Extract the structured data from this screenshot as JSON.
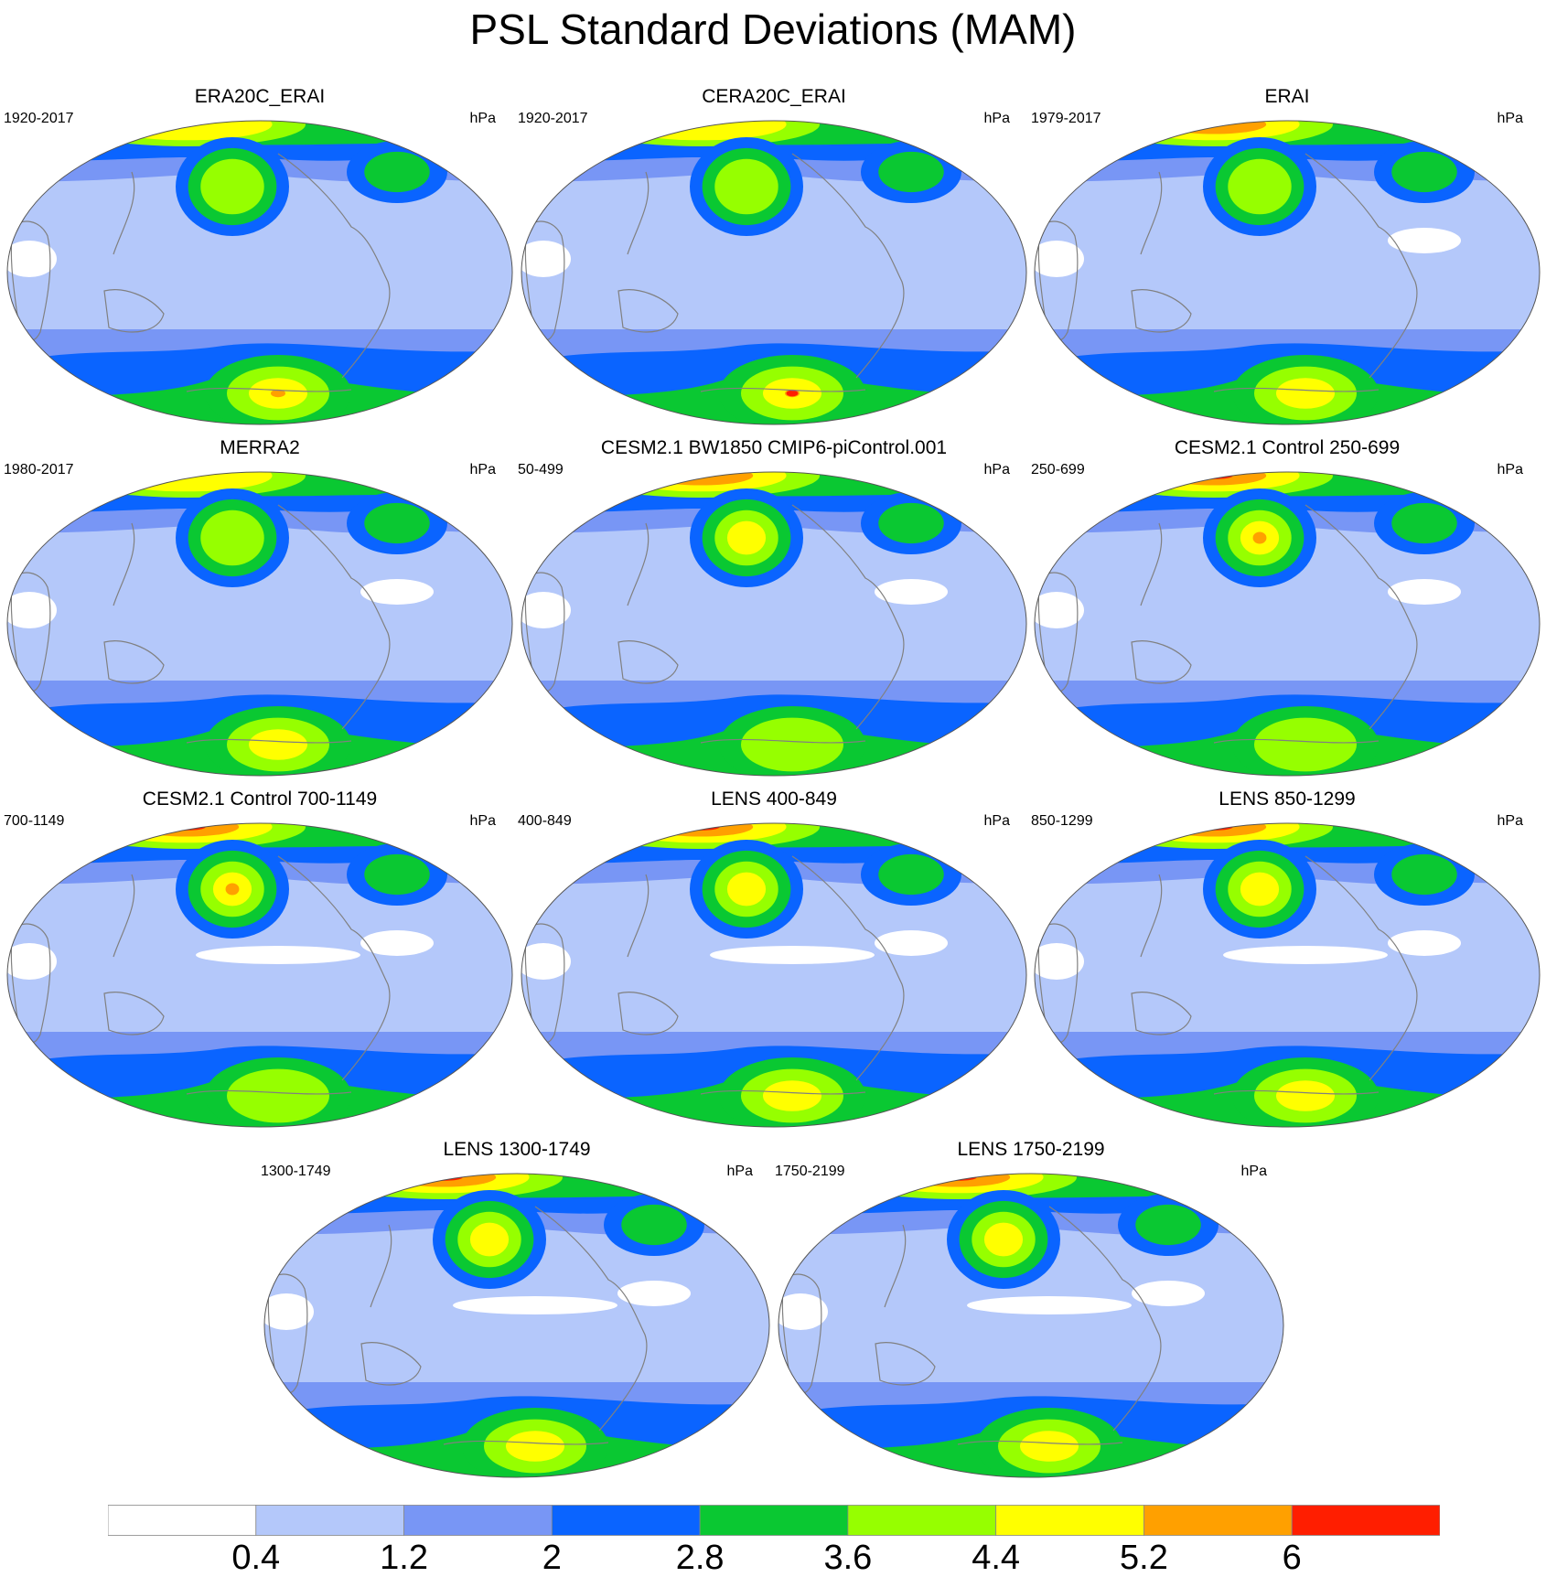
{
  "title": "PSL Standard Deviations (MAM)",
  "colors": {
    "white": "#ffffff",
    "light_blue": "#b4c8fa",
    "medium_blue": "#7896f5",
    "blue": "#0a64ff",
    "green": "#0ac832",
    "lime": "#96ff00",
    "yellow": "#ffff00",
    "orange": "#ffa000",
    "red": "#ff1e00",
    "coastline": "#808080"
  },
  "colorbar": {
    "labels": [
      "0.4",
      "1.2",
      "2",
      "2.8",
      "3.6",
      "4.4",
      "5.2",
      "6"
    ],
    "colors": [
      "#ffffff",
      "#b4c8fa",
      "#7896f5",
      "#0a64ff",
      "#0ac832",
      "#96ff00",
      "#ffff00",
      "#ffa000",
      "#ff1e00"
    ]
  },
  "panels": [
    {
      "title": "ERA20C_ERAI",
      "period": "1920-2017",
      "units": "hPa",
      "npac_max": "lime",
      "arctic_max": "yellow",
      "south_max": "orange"
    },
    {
      "title": "CERA20C_ERAI",
      "period": "1920-2017",
      "units": "hPa",
      "npac_max": "lime",
      "arctic_max": "yellow",
      "south_max": "red"
    },
    {
      "title": "ERAI",
      "period": "1979-2017",
      "units": "hPa",
      "npac_max": "lime",
      "arctic_max": "orange",
      "south_max": "yellow"
    },
    {
      "title": "MERRA2",
      "period": "1980-2017",
      "units": "hPa",
      "npac_max": "lime",
      "arctic_max": "yellow",
      "south_max": "yellow"
    },
    {
      "title": "CESM2.1 BW1850 CMIP6-piControl.001",
      "period": "50-499",
      "units": "hPa",
      "npac_max": "yellow",
      "arctic_max": "orange",
      "south_max": "lime"
    },
    {
      "title": "CESM2.1 Control 250-699",
      "period": "250-699",
      "units": "hPa",
      "npac_max": "orange",
      "arctic_max": "red",
      "south_max": "lime"
    },
    {
      "title": "CESM2.1 Control 700-1149",
      "period": "700-1149",
      "units": "hPa",
      "npac_max": "orange",
      "arctic_max": "red",
      "south_max": "lime"
    },
    {
      "title": "LENS 400-849",
      "period": "400-849",
      "units": "hPa",
      "npac_max": "yellow",
      "arctic_max": "red",
      "south_max": "yellow"
    },
    {
      "title": "LENS 850-1299",
      "period": "850-1299",
      "units": "hPa",
      "npac_max": "yellow",
      "arctic_max": "red",
      "south_max": "yellow"
    },
    {
      "title": "LENS 1300-1749",
      "period": "1300-1749",
      "units": "hPa",
      "npac_max": "yellow",
      "arctic_max": "red",
      "south_max": "yellow"
    },
    {
      "title": "LENS 1750-2199",
      "period": "1750-2199",
      "units": "hPa",
      "npac_max": "yellow",
      "arctic_max": "red",
      "south_max": "yellow"
    }
  ]
}
